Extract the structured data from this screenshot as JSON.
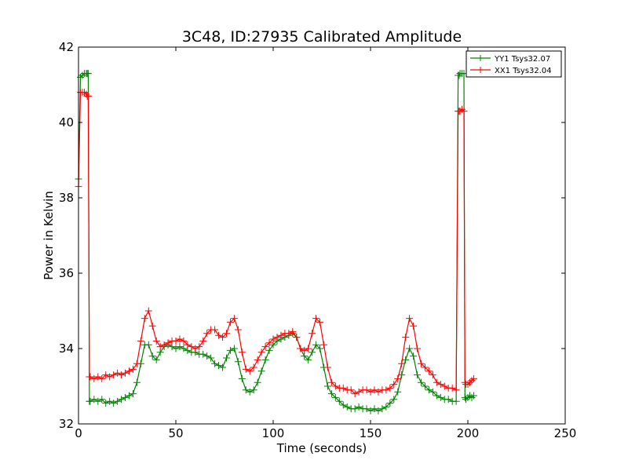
{
  "chart_data": {
    "type": "line",
    "title": "3C48, ID:27935 Calibrated Amplitude",
    "xlabel": "Time (seconds)",
    "ylabel": "Power in Kelvin",
    "xlim": [
      0,
      250
    ],
    "ylim": [
      32,
      42
    ],
    "xticks": [
      "0",
      "50",
      "100",
      "150",
      "200",
      "250"
    ],
    "yticks": [
      "32",
      "34",
      "36",
      "38",
      "40",
      "42"
    ],
    "grid": false,
    "legend_position": "top-right",
    "marker": "+",
    "series": [
      {
        "name": "YY1 Tsys32.07",
        "color": "#008000",
        "x": [
          0,
          1,
          2,
          3,
          4,
          4.5,
          5,
          5.6,
          6,
          8,
          10,
          12,
          14,
          16,
          18,
          20,
          22,
          24,
          26,
          28,
          30,
          32,
          34,
          36,
          38,
          40,
          42,
          44,
          46,
          48,
          50,
          52,
          54,
          56,
          58,
          60,
          62,
          64,
          66,
          68,
          70,
          72,
          74,
          76,
          78,
          80,
          82,
          84,
          86,
          88,
          90,
          92,
          94,
          96,
          98,
          100,
          102,
          104,
          106,
          108,
          110,
          112,
          114,
          116,
          118,
          120,
          122,
          124,
          126,
          128,
          130,
          132,
          134,
          136,
          138,
          140,
          142,
          144,
          146,
          148,
          150,
          152,
          154,
          156,
          158,
          160,
          162,
          164,
          166,
          168,
          170,
          172,
          174,
          176,
          178,
          180,
          182,
          184,
          186,
          188,
          190,
          192,
          194,
          195,
          195.5,
          196,
          197,
          198,
          198.5,
          199,
          200,
          201,
          202,
          203
        ],
        "y": [
          38.5,
          41.2,
          41.25,
          41.3,
          41.3,
          41.3,
          41.3,
          32.6,
          32.6,
          32.65,
          32.6,
          32.65,
          32.55,
          32.6,
          32.55,
          32.6,
          32.65,
          32.7,
          32.75,
          32.8,
          33.1,
          33.6,
          34.1,
          34.1,
          33.8,
          33.7,
          33.9,
          34.05,
          34.1,
          34.05,
          34.0,
          34.05,
          34.0,
          33.95,
          33.9,
          33.9,
          33.85,
          33.85,
          33.8,
          33.75,
          33.6,
          33.55,
          33.5,
          33.75,
          33.95,
          34.0,
          33.65,
          33.2,
          32.9,
          32.85,
          32.9,
          33.1,
          33.4,
          33.7,
          33.95,
          34.1,
          34.2,
          34.25,
          34.3,
          34.35,
          34.4,
          34.3,
          34.0,
          33.8,
          33.7,
          33.9,
          34.1,
          34.0,
          33.5,
          33.0,
          32.8,
          32.7,
          32.6,
          32.5,
          32.45,
          32.4,
          32.4,
          32.45,
          32.4,
          32.4,
          32.35,
          32.4,
          32.35,
          32.4,
          32.45,
          32.55,
          32.65,
          32.85,
          33.3,
          33.7,
          34.0,
          33.8,
          33.3,
          33.1,
          33.0,
          32.9,
          32.85,
          32.75,
          32.7,
          32.65,
          32.65,
          32.6,
          32.6,
          41.25,
          41.25,
          41.3,
          41.3,
          41.3,
          32.7,
          32.65,
          32.7,
          32.75,
          32.7,
          32.75
        ]
      },
      {
        "name": "XX1 Tsys32.04",
        "color": "#ff0000",
        "x": [
          0,
          1,
          2,
          3,
          4,
          4.5,
          5,
          5.6,
          6,
          8,
          10,
          12,
          14,
          16,
          18,
          20,
          22,
          24,
          26,
          28,
          30,
          32,
          34,
          36,
          38,
          40,
          42,
          44,
          46,
          48,
          50,
          52,
          54,
          56,
          58,
          60,
          62,
          64,
          66,
          68,
          70,
          72,
          74,
          76,
          78,
          80,
          82,
          84,
          86,
          88,
          90,
          92,
          94,
          96,
          98,
          100,
          102,
          104,
          106,
          108,
          110,
          112,
          114,
          116,
          118,
          120,
          122,
          124,
          126,
          128,
          130,
          132,
          134,
          136,
          138,
          140,
          142,
          144,
          146,
          148,
          150,
          152,
          154,
          156,
          158,
          160,
          162,
          164,
          166,
          168,
          170,
          172,
          174,
          176,
          178,
          180,
          182,
          184,
          186,
          188,
          190,
          192,
          194,
          195,
          195.5,
          196,
          197,
          198,
          198.5,
          199,
          200,
          201,
          202,
          203
        ],
        "y": [
          38.3,
          40.8,
          40.8,
          40.8,
          40.75,
          40.7,
          40.7,
          33.25,
          33.25,
          33.2,
          33.25,
          33.2,
          33.3,
          33.25,
          33.3,
          33.35,
          33.3,
          33.35,
          33.4,
          33.45,
          33.6,
          34.2,
          34.8,
          35.0,
          34.6,
          34.2,
          34.05,
          34.1,
          34.15,
          34.2,
          34.2,
          34.25,
          34.2,
          34.1,
          34.05,
          34.0,
          34.05,
          34.2,
          34.4,
          34.5,
          34.5,
          34.35,
          34.3,
          34.4,
          34.7,
          34.8,
          34.5,
          33.9,
          33.45,
          33.4,
          33.5,
          33.7,
          33.9,
          34.05,
          34.15,
          34.25,
          34.3,
          34.35,
          34.4,
          34.4,
          34.45,
          34.3,
          34.0,
          33.95,
          34.0,
          34.4,
          34.8,
          34.7,
          34.1,
          33.5,
          33.1,
          33.0,
          32.95,
          32.95,
          32.9,
          32.9,
          32.8,
          32.85,
          32.9,
          32.9,
          32.85,
          32.9,
          32.85,
          32.9,
          32.9,
          32.95,
          33.05,
          33.2,
          33.6,
          34.3,
          34.8,
          34.6,
          34.0,
          33.6,
          33.5,
          33.4,
          33.3,
          33.1,
          33.05,
          33.0,
          32.95,
          32.95,
          32.9,
          40.3,
          40.3,
          40.3,
          40.35,
          40.3,
          33.1,
          33.05,
          33.05,
          33.1,
          33.15,
          33.2
        ]
      }
    ]
  }
}
